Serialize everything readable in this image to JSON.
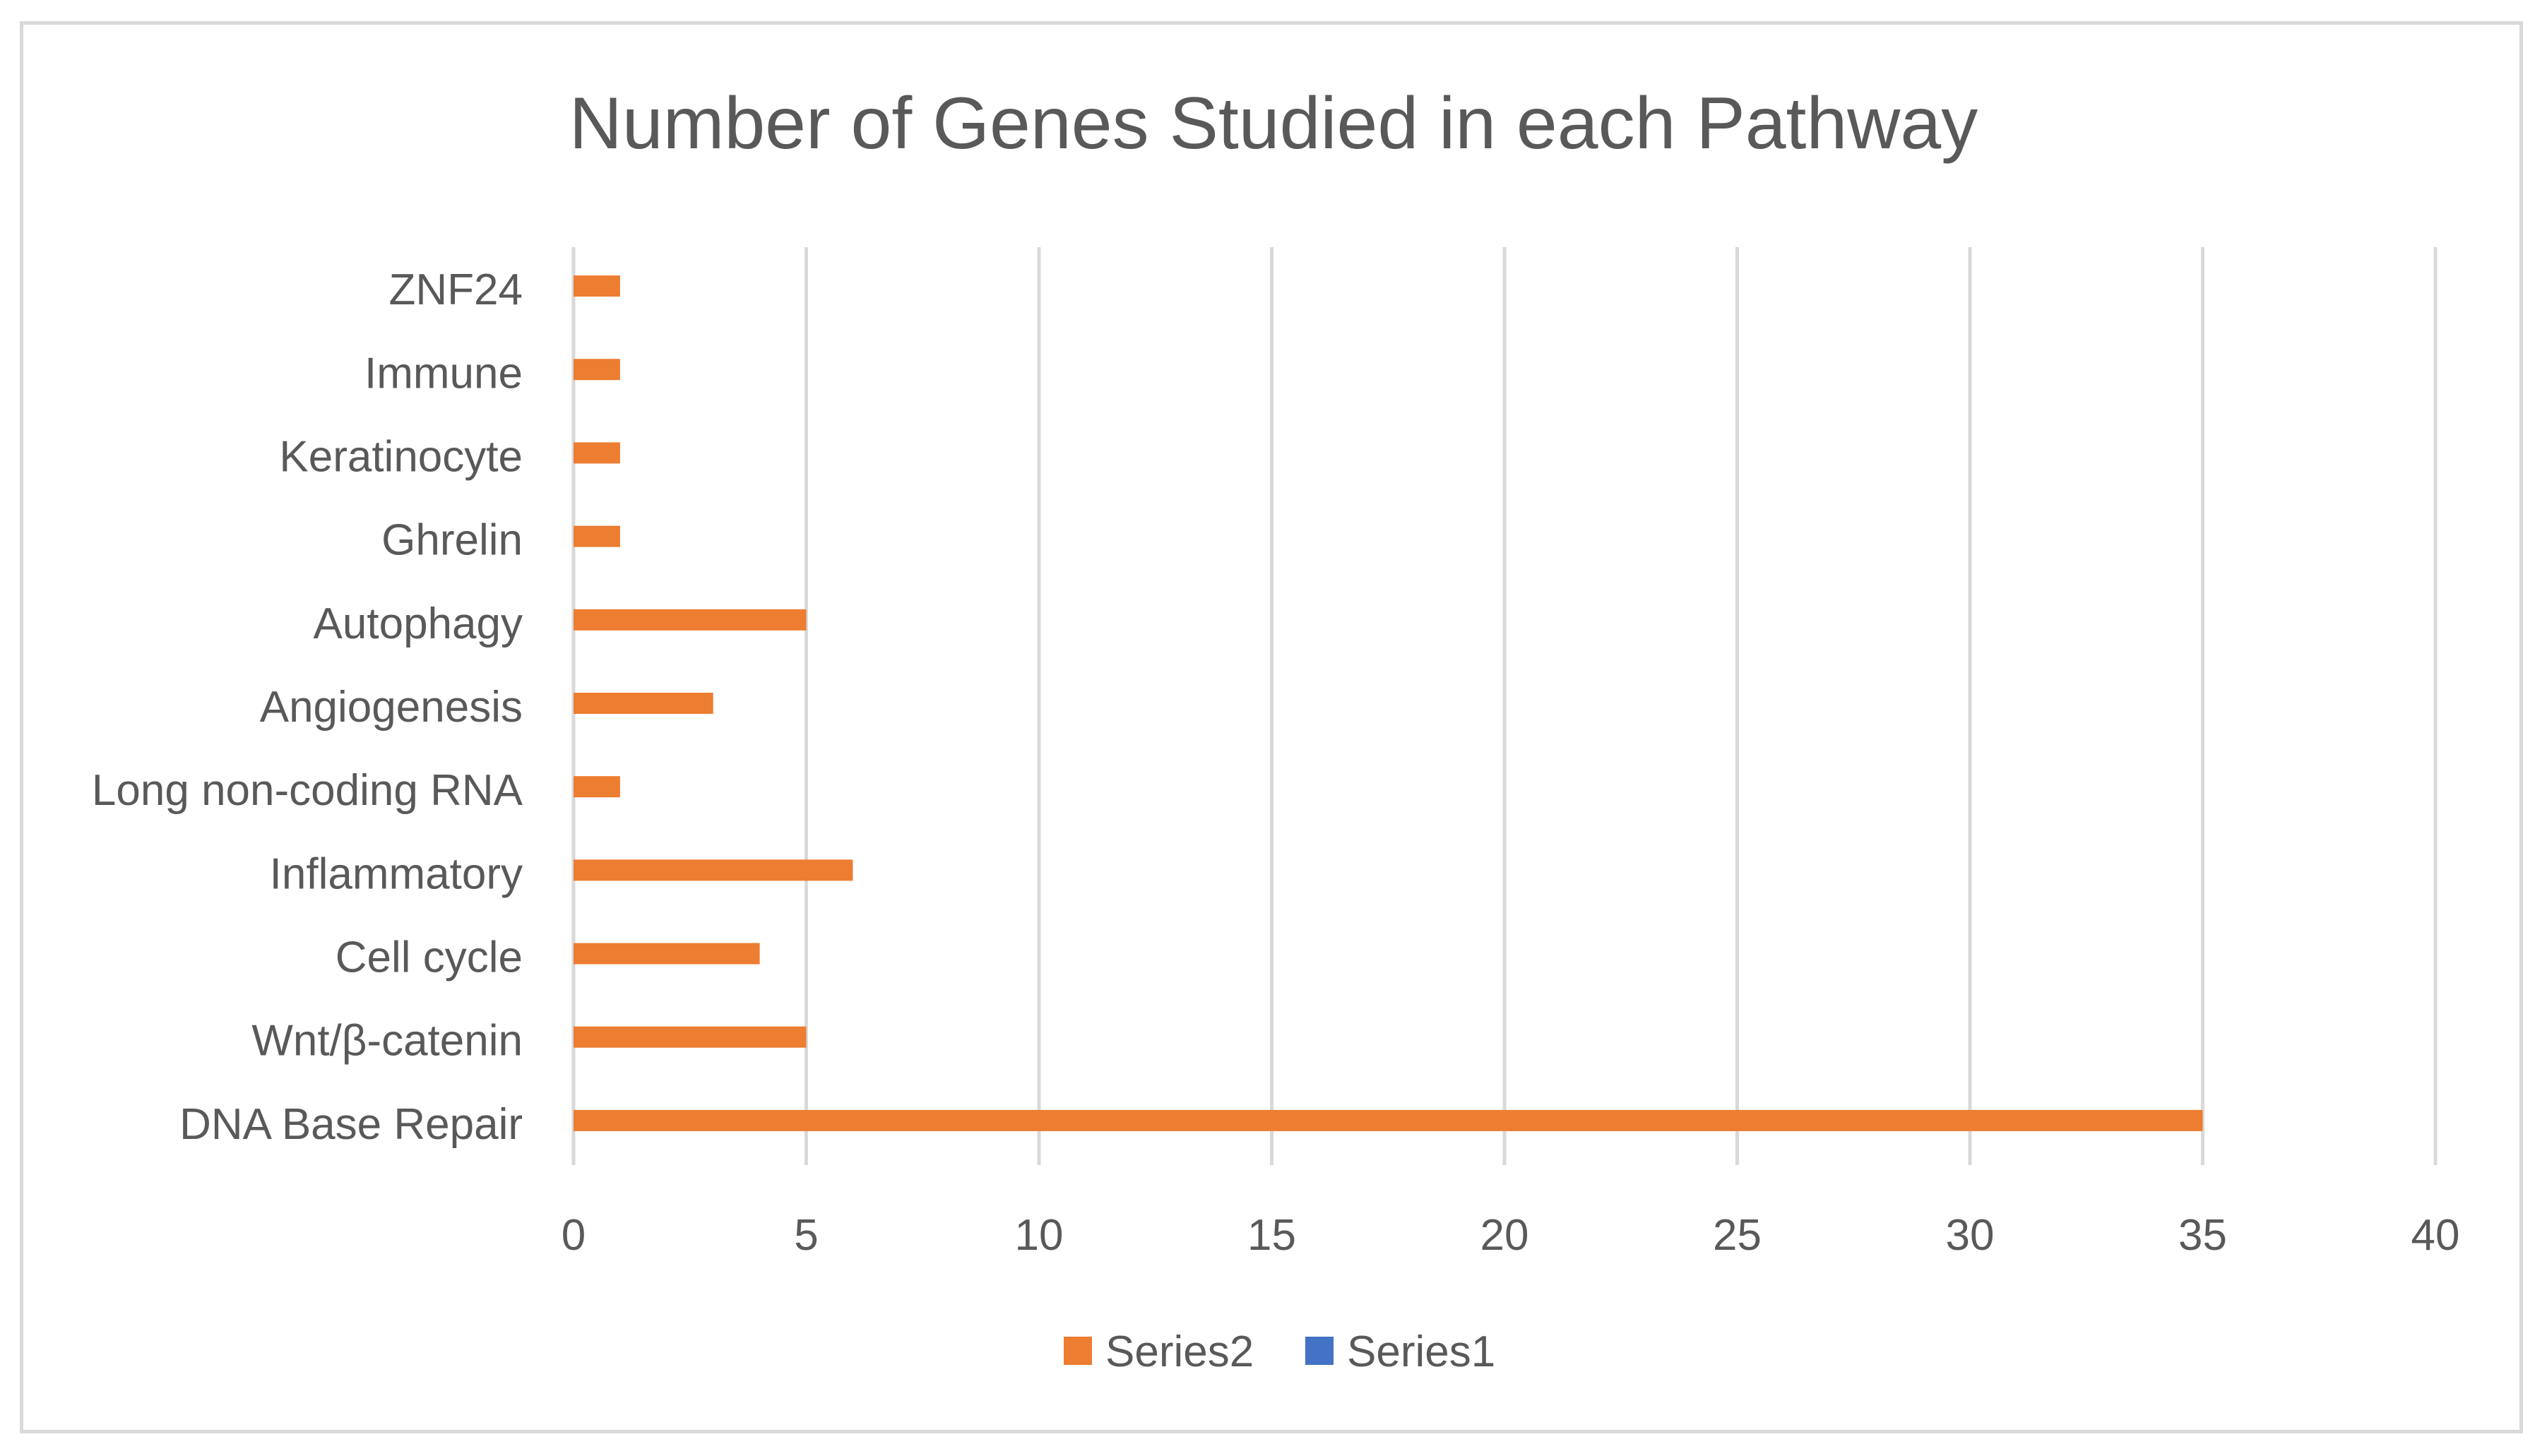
{
  "chart_data": {
    "type": "bar",
    "orientation": "horizontal",
    "title": "Number of Genes Studied in each Pathway",
    "xlabel": "",
    "ylabel": "",
    "categories": [
      "DNA Base Repair",
      "Wnt/β-catenin",
      "Cell cycle",
      "Inflammatory",
      "Long non-coding RNA",
      "Angiogenesis",
      "Autophagy",
      "Ghrelin",
      "Keratinocyte",
      "Immune",
      "ZNF24"
    ],
    "series": [
      {
        "name": "Series2",
        "color": "#ed7d31",
        "values": [
          35,
          5,
          4,
          6,
          1,
          3,
          5,
          1,
          1,
          1,
          1
        ]
      },
      {
        "name": "Series1",
        "color": "#4472c4",
        "values": [
          0,
          0,
          0,
          0,
          0,
          0,
          0,
          0,
          0,
          0,
          0
        ]
      }
    ],
    "xlim": [
      0,
      40
    ],
    "xticks": [
      0,
      5,
      10,
      15,
      20,
      25,
      30,
      35,
      40
    ],
    "grid": "vertical",
    "legend": "bottom",
    "legend_order": [
      "Series2",
      "Series1"
    ],
    "gridline_color": "#d9d9d9",
    "text_color": "#595959"
  }
}
